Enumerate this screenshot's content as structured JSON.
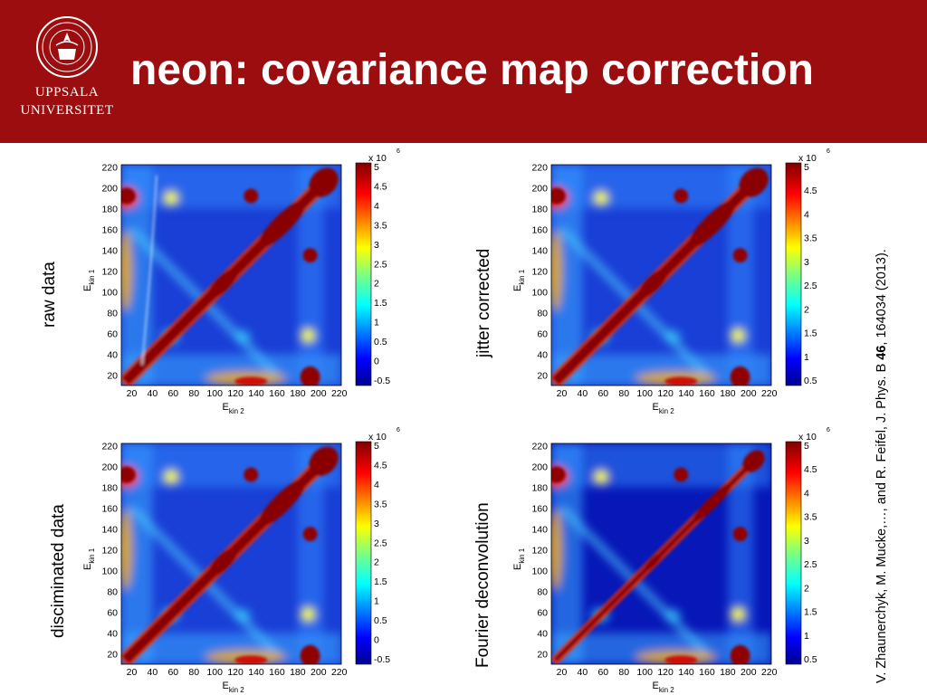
{
  "slide": {
    "title": "neon: covariance map correction",
    "logo": {
      "line1": "UPPSALA",
      "line2": "UNIVERSITET"
    },
    "citation": {
      "prefix": "V. Zhaunerchyk, M. Mucke,…, and R. Feifel, J. Phys. B ",
      "volume": "46",
      "suffix": ", 164034 (2013)."
    }
  },
  "panels": [
    {
      "label": "raw data",
      "xlabel": "E",
      "xlabel_sub": "kin 2",
      "ylabel": "E",
      "ylabel_sub": "kin 1",
      "x_ticks": [
        "20",
        "40",
        "60",
        "80",
        "100",
        "120",
        "140",
        "160",
        "180",
        "200",
        "220"
      ],
      "y_ticks": [
        "20",
        "40",
        "60",
        "80",
        "100",
        "120",
        "140",
        "160",
        "180",
        "200",
        "220"
      ],
      "colorbar_ticks": [
        "5",
        "4.5",
        "4",
        "3.5",
        "3",
        "2.5",
        "2",
        "1.5",
        "1",
        "0.5",
        "0",
        "-0.5"
      ],
      "colorbar_exp": "x 10",
      "colorbar_exp_power": "6"
    },
    {
      "label": "jitter corrected",
      "xlabel": "E",
      "xlabel_sub": "kin 2",
      "ylabel": "E",
      "ylabel_sub": "kin 1",
      "x_ticks": [
        "20",
        "40",
        "60",
        "80",
        "100",
        "120",
        "140",
        "160",
        "180",
        "200",
        "220"
      ],
      "y_ticks": [
        "20",
        "40",
        "60",
        "80",
        "100",
        "120",
        "140",
        "160",
        "180",
        "200",
        "220"
      ],
      "colorbar_ticks": [
        "5",
        "4.5",
        "4",
        "3.5",
        "3",
        "2.5",
        "2",
        "1.5",
        "1",
        "0.5"
      ],
      "colorbar_exp": "x 10",
      "colorbar_exp_power": "6"
    },
    {
      "label": "disciminated data",
      "xlabel": "E",
      "xlabel_sub": "kin 2",
      "ylabel": "E",
      "ylabel_sub": "kin 1",
      "x_ticks": [
        "20",
        "40",
        "60",
        "80",
        "100",
        "120",
        "140",
        "160",
        "180",
        "200",
        "220"
      ],
      "y_ticks": [
        "20",
        "40",
        "60",
        "80",
        "100",
        "120",
        "140",
        "160",
        "180",
        "200",
        "220"
      ],
      "colorbar_ticks": [
        "5",
        "4.5",
        "4",
        "3.5",
        "3",
        "2.5",
        "2",
        "1.5",
        "1",
        "0.5",
        "0",
        "-0.5"
      ],
      "colorbar_exp": "x 10",
      "colorbar_exp_power": "6"
    },
    {
      "label": "Fourier deconvolution",
      "xlabel": "E",
      "xlabel_sub": "kin 2",
      "ylabel": "E",
      "ylabel_sub": "kin 1",
      "x_ticks": [
        "20",
        "40",
        "60",
        "80",
        "100",
        "120",
        "140",
        "160",
        "180",
        "200",
        "220"
      ],
      "y_ticks": [
        "20",
        "40",
        "60",
        "80",
        "100",
        "120",
        "140",
        "160",
        "180",
        "200",
        "220"
      ],
      "colorbar_ticks": [
        "5",
        "4.5",
        "4",
        "3.5",
        "3",
        "2.5",
        "2",
        "1.5",
        "1",
        "0.5"
      ],
      "colorbar_exp": "x 10",
      "colorbar_exp_power": "6"
    }
  ],
  "colors": {
    "header": "#9b0d0f",
    "map_low": "#0a1db0",
    "map_high": "#800000"
  }
}
